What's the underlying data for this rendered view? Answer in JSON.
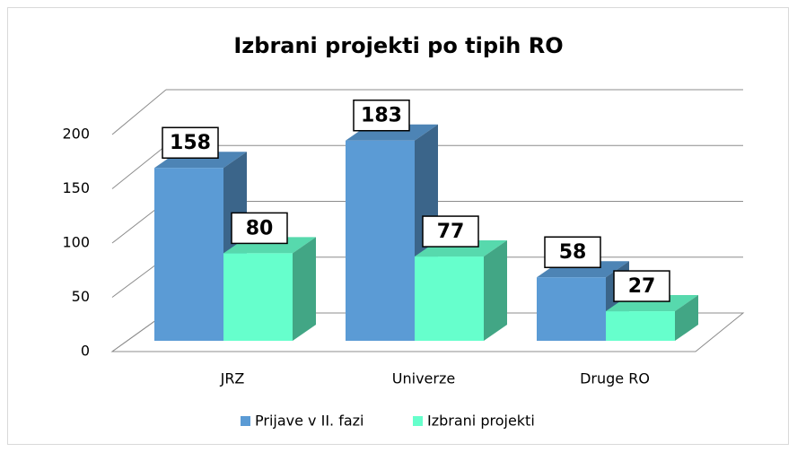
{
  "chart_data": {
    "type": "bar",
    "title": "Izbrani projekti po tipih RO",
    "categories": [
      "JRZ",
      "Univerze",
      "Druge RO"
    ],
    "series": [
      {
        "name": "Prijave v II. fazi",
        "color": "#5b9bd5",
        "values": [
          158,
          183,
          58
        ]
      },
      {
        "name": "Izbrani projekti",
        "color": "#66ffcc",
        "values": [
          80,
          77,
          27
        ]
      }
    ],
    "ylim": [
      0,
      200
    ],
    "yticks": [
      0,
      50,
      100,
      150,
      200
    ],
    "grid": true,
    "legend": "bottom"
  }
}
